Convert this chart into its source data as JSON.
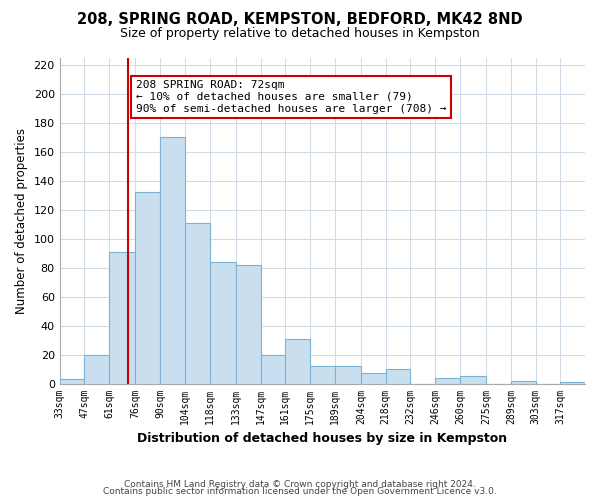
{
  "title": "208, SPRING ROAD, KEMPSTON, BEDFORD, MK42 8ND",
  "subtitle": "Size of property relative to detached houses in Kempston",
  "xlabel": "Distribution of detached houses by size in Kempston",
  "ylabel": "Number of detached properties",
  "bin_labels": [
    "33sqm",
    "47sqm",
    "61sqm",
    "76sqm",
    "90sqm",
    "104sqm",
    "118sqm",
    "133sqm",
    "147sqm",
    "161sqm",
    "175sqm",
    "189sqm",
    "204sqm",
    "218sqm",
    "232sqm",
    "246sqm",
    "260sqm",
    "275sqm",
    "289sqm",
    "303sqm",
    "317sqm"
  ],
  "bar_heights": [
    3,
    20,
    91,
    132,
    170,
    111,
    84,
    82,
    20,
    31,
    12,
    12,
    7,
    10,
    0,
    4,
    5,
    0,
    2,
    0,
    1
  ],
  "bar_color": "#c9dff0",
  "bar_edge_color": "#7ab3d4",
  "property_line_x": 72,
  "property_line_color": "#cc0000",
  "annotation_line1": "208 SPRING ROAD: 72sqm",
  "annotation_line2": "← 10% of detached houses are smaller (79)",
  "annotation_line3": "90% of semi-detached houses are larger (708) →",
  "ylim": [
    0,
    225
  ],
  "yticks": [
    0,
    20,
    40,
    60,
    80,
    100,
    120,
    140,
    160,
    180,
    200,
    220
  ],
  "footer_line1": "Contains HM Land Registry data © Crown copyright and database right 2024.",
  "footer_line2": "Contains public sector information licensed under the Open Government Licence v3.0.",
  "bg_color": "#ffffff",
  "grid_color": "#d0dde8",
  "bin_edges": [
    33,
    47,
    61,
    76,
    90,
    104,
    118,
    133,
    147,
    161,
    175,
    189,
    204,
    218,
    232,
    246,
    260,
    275,
    289,
    303,
    317,
    331
  ]
}
